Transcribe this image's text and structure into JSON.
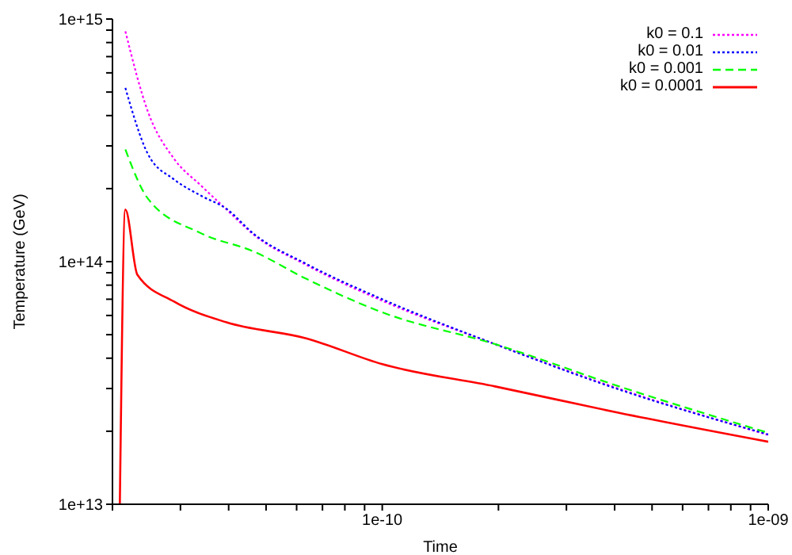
{
  "chart_data": {
    "type": "line",
    "xlabel": "Time",
    "ylabel": "Temperature (GeV)",
    "log": "xy",
    "grid": false,
    "legend": "top right",
    "marker": "none",
    "xlim": [
      2e-11,
      1e-09
    ],
    "xticks": [
      {
        "value": 2e-11,
        "label": null
      },
      {
        "value": 3e-11,
        "label": null
      },
      {
        "value": 4e-11,
        "label": null
      },
      {
        "value": 5e-11,
        "label": null
      },
      {
        "value": 6e-11,
        "label": null
      },
      {
        "value": 7e-11,
        "label": null
      },
      {
        "value": 8e-11,
        "label": null
      },
      {
        "value": 9e-11,
        "label": null
      },
      {
        "value": 1e-10,
        "label": "1e-10"
      },
      {
        "value": 2e-10,
        "label": null
      },
      {
        "value": 3e-10,
        "label": null
      },
      {
        "value": 4e-10,
        "label": null
      },
      {
        "value": 5e-10,
        "label": null
      },
      {
        "value": 6e-10,
        "label": null
      },
      {
        "value": 7e-10,
        "label": null
      },
      {
        "value": 8e-10,
        "label": null
      },
      {
        "value": 9e-10,
        "label": null
      },
      {
        "value": 1e-09,
        "label": "1e-09"
      }
    ],
    "ylim": [
      10000000000000.0,
      1000000000000000.0
    ],
    "yticks": [
      {
        "value": 10000000000000.0,
        "label": "1e+13"
      },
      {
        "value": 20000000000000.0,
        "label": null
      },
      {
        "value": 30000000000000.0,
        "label": null
      },
      {
        "value": 40000000000000.0,
        "label": null
      },
      {
        "value": 50000000000000.0,
        "label": null
      },
      {
        "value": 60000000000000.0,
        "label": null
      },
      {
        "value": 70000000000000.0,
        "label": null
      },
      {
        "value": 80000000000000.0,
        "label": null
      },
      {
        "value": 90000000000000.0,
        "label": null
      },
      {
        "value": 100000000000000.0,
        "label": "1e+14"
      },
      {
        "value": 200000000000000.0,
        "label": null
      },
      {
        "value": 300000000000000.0,
        "label": null
      },
      {
        "value": 400000000000000.0,
        "label": null
      },
      {
        "value": 500000000000000.0,
        "label": null
      },
      {
        "value": 600000000000000.0,
        "label": null
      },
      {
        "value": 700000000000000.0,
        "label": null
      },
      {
        "value": 800000000000000.0,
        "label": null
      },
      {
        "value": 900000000000000.0,
        "label": null
      },
      {
        "value": 1000000000000000.0,
        "label": "1e+15"
      }
    ],
    "series": [
      {
        "name": "k0 = 0.1",
        "color": "#ff00ff",
        "line_style": "dotted",
        "x": [
          2.16e-11,
          2.47e-11,
          2.89e-11,
          3.39e-11,
          3.95e-11,
          4.65e-11,
          6.35e-11,
          1e-10,
          1.96e-10,
          4.11e-10,
          1e-09
        ],
        "values": [
          890000000000000.0,
          416000000000000.0,
          265000000000000.0,
          206000000000000.0,
          164000000000000.0,
          129000000000000.0,
          97000000000000.0,
          69000000000000.0,
          45700000000000.0,
          29900000000000.0,
          19300000000000.0
        ]
      },
      {
        "name": "k0 = 0.01",
        "color": "#0000ff",
        "line_style": "dotted",
        "x": [
          2.16e-11,
          2.47e-11,
          2.89e-11,
          3.39e-11,
          3.95e-11,
          4.65e-11,
          6.35e-11,
          1e-10,
          1.96e-10,
          4.11e-10,
          1e-09
        ],
        "values": [
          520000000000000.0,
          278000000000000.0,
          218000000000000.0,
          187000000000000.0,
          165000000000000.0,
          130000000000000.0,
          98000000000000.0,
          70000000000000.0,
          45700000000000.0,
          29700000000000.0,
          19400000000000.0
        ]
      },
      {
        "name": "k0 = 0.001",
        "color": "#00ff00",
        "line_style": "dashed",
        "x": [
          2.16e-11,
          2.47e-11,
          3.39e-11,
          4.65e-11,
          6.35e-11,
          1e-10,
          1.96e-10,
          4.11e-10,
          1e-09
        ],
        "values": [
          290000000000000.0,
          182000000000000.0,
          131000000000000.0,
          110000000000000.0,
          85000000000000.0,
          61800000000000.0,
          45700000000000.0,
          30600000000000.0,
          19700000000000.0
        ]
      },
      {
        "name": "k0 = 0.0001",
        "color": "#ff0000",
        "line_style": "solid",
        "x": [
          2.09e-11,
          2.16e-11,
          2.32e-11,
          2.89e-11,
          3.95e-11,
          6.35e-11,
          1e-10,
          1.96e-10,
          4.11e-10,
          1e-09
        ],
        "values": [
          10000000000000.0,
          164000000000000.0,
          88300000000000.0,
          68400000000000.0,
          56200000000000.0,
          48300000000000.0,
          37800000000000.0,
          30600000000000.0,
          23800000000000.0,
          18100000000000.0
        ]
      }
    ]
  }
}
